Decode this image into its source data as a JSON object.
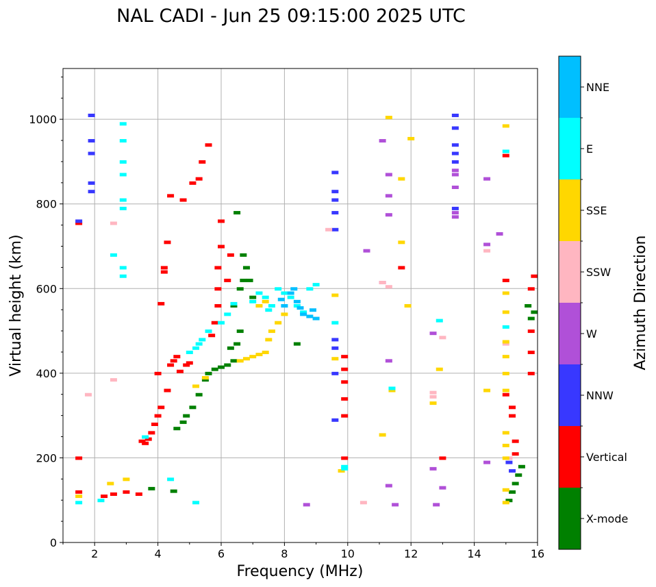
{
  "chart_data": {
    "type": "scatter",
    "title": "NAL CADI - Jun 25 09:15:00 2025 UTC",
    "xlabel": "Frequency (MHz)",
    "ylabel": "Virtual height (km)",
    "xlim": [
      1,
      16
    ],
    "ylim": [
      0,
      1120
    ],
    "xticks": [
      2,
      4,
      6,
      8,
      10,
      12,
      14,
      16
    ],
    "yticks": [
      0,
      200,
      400,
      600,
      800,
      1000
    ],
    "grid": true,
    "colorbar": {
      "label": "Azimuth Direction",
      "categories": [
        {
          "name": "X-mode",
          "color": "#008000"
        },
        {
          "name": "Vertical",
          "color": "#ff0000"
        },
        {
          "name": "NNW",
          "color": "#3838ff"
        },
        {
          "name": "W",
          "color": "#b050d8"
        },
        {
          "name": "SSW",
          "color": "#ffb6c1"
        },
        {
          "name": "SSE",
          "color": "#ffd700"
        },
        {
          "name": "E",
          "color": "#00ffff"
        },
        {
          "name": "NNE",
          "color": "#00bfff"
        }
      ]
    },
    "series": [
      {
        "name": "X-mode",
        "points": [
          [
            3.8,
            128
          ],
          [
            4.5,
            122
          ],
          [
            4.6,
            270
          ],
          [
            4.8,
            285
          ],
          [
            4.9,
            300
          ],
          [
            5.1,
            320
          ],
          [
            5.3,
            350
          ],
          [
            5.5,
            385
          ],
          [
            5.6,
            400
          ],
          [
            5.8,
            410
          ],
          [
            6.0,
            415
          ],
          [
            6.2,
            420
          ],
          [
            6.4,
            430
          ],
          [
            6.5,
            470
          ],
          [
            6.6,
            500
          ],
          [
            6.6,
            600
          ],
          [
            6.7,
            620
          ],
          [
            6.7,
            680
          ],
          [
            6.8,
            650
          ],
          [
            6.9,
            620
          ],
          [
            7.0,
            580
          ],
          [
            6.5,
            780
          ],
          [
            6.4,
            560
          ],
          [
            6.3,
            460
          ],
          [
            8.4,
            470
          ],
          [
            15.1,
            100
          ],
          [
            15.2,
            120
          ],
          [
            15.3,
            140
          ],
          [
            15.4,
            160
          ],
          [
            15.5,
            180
          ],
          [
            15.8,
            530
          ],
          [
            15.9,
            545
          ],
          [
            15.7,
            560
          ]
        ]
      },
      {
        "name": "Vertical",
        "points": [
          [
            1.5,
            120
          ],
          [
            1.5,
            200
          ],
          [
            1.5,
            755
          ],
          [
            2.3,
            110
          ],
          [
            2.6,
            115
          ],
          [
            3.0,
            120
          ],
          [
            3.4,
            115
          ],
          [
            3.5,
            240
          ],
          [
            3.6,
            235
          ],
          [
            3.7,
            245
          ],
          [
            3.8,
            260
          ],
          [
            3.9,
            280
          ],
          [
            4.0,
            300
          ],
          [
            4.0,
            400
          ],
          [
            4.1,
            320
          ],
          [
            4.1,
            565
          ],
          [
            4.2,
            640
          ],
          [
            4.2,
            650
          ],
          [
            4.3,
            360
          ],
          [
            4.3,
            710
          ],
          [
            4.4,
            420
          ],
          [
            4.4,
            820
          ],
          [
            4.5,
            430
          ],
          [
            4.6,
            440
          ],
          [
            4.7,
            405
          ],
          [
            4.8,
            810
          ],
          [
            4.9,
            420
          ],
          [
            5.0,
            425
          ],
          [
            5.1,
            850
          ],
          [
            5.3,
            860
          ],
          [
            5.4,
            900
          ],
          [
            5.6,
            940
          ],
          [
            5.7,
            490
          ],
          [
            5.8,
            520
          ],
          [
            5.9,
            560
          ],
          [
            5.9,
            600
          ],
          [
            5.9,
            650
          ],
          [
            6.0,
            700
          ],
          [
            6.0,
            760
          ],
          [
            6.2,
            620
          ],
          [
            6.3,
            680
          ],
          [
            9.9,
            300
          ],
          [
            9.9,
            340
          ],
          [
            9.9,
            380
          ],
          [
            9.9,
            410
          ],
          [
            9.9,
            440
          ],
          [
            9.9,
            200
          ],
          [
            11.7,
            650
          ],
          [
            13.0,
            200
          ],
          [
            15.0,
            915
          ],
          [
            15.0,
            620
          ],
          [
            15.0,
            350
          ],
          [
            15.2,
            300
          ],
          [
            15.2,
            320
          ],
          [
            15.3,
            210
          ],
          [
            15.3,
            240
          ],
          [
            15.8,
            400
          ],
          [
            15.8,
            450
          ],
          [
            15.8,
            500
          ],
          [
            15.8,
            600
          ],
          [
            15.9,
            630
          ]
        ]
      },
      {
        "name": "NNW",
        "points": [
          [
            1.5,
            760
          ],
          [
            1.9,
            1010
          ],
          [
            1.9,
            950
          ],
          [
            1.9,
            920
          ],
          [
            1.9,
            850
          ],
          [
            1.9,
            830
          ],
          [
            9.6,
            875
          ],
          [
            9.6,
            830
          ],
          [
            9.6,
            810
          ],
          [
            9.6,
            780
          ],
          [
            9.6,
            740
          ],
          [
            9.6,
            480
          ],
          [
            9.6,
            460
          ],
          [
            9.6,
            400
          ],
          [
            9.6,
            290
          ],
          [
            13.4,
            1010
          ],
          [
            13.4,
            980
          ],
          [
            13.4,
            940
          ],
          [
            13.4,
            920
          ],
          [
            13.4,
            900
          ],
          [
            13.4,
            790
          ],
          [
            15.1,
            190
          ],
          [
            15.2,
            170
          ]
        ]
      },
      {
        "name": "W",
        "points": [
          [
            11.1,
            950
          ],
          [
            11.3,
            870
          ],
          [
            11.3,
            820
          ],
          [
            11.3,
            775
          ],
          [
            11.3,
            430
          ],
          [
            11.3,
            135
          ],
          [
            11.5,
            90
          ],
          [
            8.7,
            90
          ],
          [
            10.6,
            690
          ],
          [
            12.7,
            495
          ],
          [
            12.7,
            175
          ],
          [
            12.8,
            90
          ],
          [
            13.0,
            130
          ],
          [
            13.4,
            880
          ],
          [
            13.4,
            870
          ],
          [
            13.4,
            840
          ],
          [
            13.4,
            780
          ],
          [
            13.4,
            770
          ],
          [
            14.4,
            860
          ],
          [
            14.4,
            705
          ],
          [
            14.4,
            190
          ],
          [
            14.8,
            730
          ],
          [
            11.1,
            615
          ]
        ]
      },
      {
        "name": "SSW",
        "points": [
          [
            2.6,
            755
          ],
          [
            2.6,
            385
          ],
          [
            1.8,
            350
          ],
          [
            9.4,
            740
          ],
          [
            11.1,
            615
          ],
          [
            11.3,
            605
          ],
          [
            12.7,
            355
          ],
          [
            12.7,
            345
          ],
          [
            13.0,
            485
          ],
          [
            14.4,
            690
          ],
          [
            15.0,
            470
          ],
          [
            15.1,
            200
          ],
          [
            10.5,
            95
          ]
        ]
      },
      {
        "name": "SSE",
        "points": [
          [
            1.5,
            110
          ],
          [
            2.5,
            140
          ],
          [
            3.0,
            150
          ],
          [
            5.2,
            370
          ],
          [
            5.5,
            390
          ],
          [
            6.6,
            430
          ],
          [
            6.8,
            435
          ],
          [
            7.0,
            440
          ],
          [
            7.2,
            445
          ],
          [
            7.4,
            450
          ],
          [
            7.5,
            480
          ],
          [
            7.6,
            500
          ],
          [
            7.8,
            520
          ],
          [
            8.0,
            540
          ],
          [
            7.2,
            560
          ],
          [
            7.4,
            570
          ],
          [
            9.6,
            585
          ],
          [
            9.6,
            435
          ],
          [
            9.8,
            170
          ],
          [
            11.3,
            1005
          ],
          [
            11.7,
            710
          ],
          [
            11.7,
            860
          ],
          [
            11.9,
            560
          ],
          [
            12.0,
            955
          ],
          [
            11.1,
            255
          ],
          [
            11.4,
            360
          ],
          [
            12.7,
            330
          ],
          [
            12.9,
            410
          ],
          [
            15.0,
            985
          ],
          [
            15.0,
            590
          ],
          [
            15.0,
            545
          ],
          [
            15.0,
            475
          ],
          [
            15.0,
            440
          ],
          [
            15.0,
            400
          ],
          [
            15.0,
            360
          ],
          [
            15.0,
            260
          ],
          [
            15.0,
            230
          ],
          [
            15.0,
            200
          ],
          [
            15.0,
            125
          ],
          [
            15.0,
            95
          ],
          [
            14.4,
            360
          ]
        ]
      },
      {
        "name": "E",
        "points": [
          [
            1.5,
            95
          ],
          [
            2.2,
            100
          ],
          [
            2.9,
            990
          ],
          [
            2.9,
            950
          ],
          [
            2.9,
            900
          ],
          [
            2.9,
            870
          ],
          [
            2.9,
            810
          ],
          [
            2.9,
            790
          ],
          [
            2.9,
            650
          ],
          [
            2.9,
            630
          ],
          [
            2.6,
            680
          ],
          [
            3.6,
            250
          ],
          [
            4.4,
            150
          ],
          [
            5.0,
            450
          ],
          [
            5.2,
            460
          ],
          [
            5.3,
            470
          ],
          [
            5.2,
            95
          ],
          [
            5.4,
            480
          ],
          [
            5.6,
            500
          ],
          [
            6.0,
            520
          ],
          [
            6.2,
            540
          ],
          [
            6.4,
            565
          ],
          [
            7.0,
            570
          ],
          [
            7.2,
            590
          ],
          [
            7.4,
            580
          ],
          [
            7.5,
            550
          ],
          [
            7.6,
            560
          ],
          [
            7.8,
            600
          ],
          [
            8.0,
            590
          ],
          [
            8.2,
            580
          ],
          [
            8.4,
            560
          ],
          [
            8.6,
            545
          ],
          [
            8.8,
            600
          ],
          [
            9.0,
            610
          ],
          [
            9.6,
            520
          ],
          [
            9.9,
            175
          ],
          [
            9.9,
            180
          ],
          [
            11.4,
            365
          ],
          [
            12.9,
            525
          ],
          [
            15.0,
            925
          ],
          [
            15.0,
            510
          ]
        ]
      },
      {
        "name": "NNE",
        "points": [
          [
            8.2,
            590
          ],
          [
            8.4,
            570
          ],
          [
            8.5,
            555
          ],
          [
            8.6,
            540
          ],
          [
            8.8,
            535
          ],
          [
            8.9,
            550
          ],
          [
            9.0,
            530
          ],
          [
            8.3,
            600
          ],
          [
            8.0,
            560
          ],
          [
            7.9,
            575
          ]
        ]
      }
    ]
  }
}
